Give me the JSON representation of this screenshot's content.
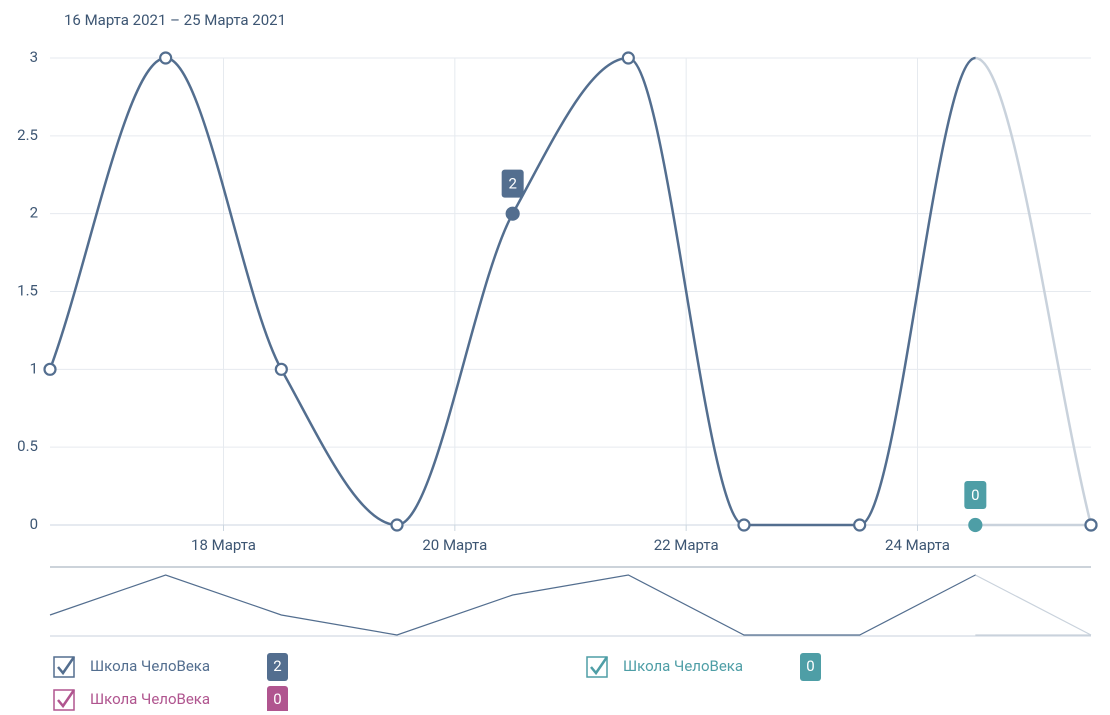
{
  "chart_data": {
    "type": "spline",
    "subtitle": "16 Марта 2021 – 25 Марта 2021",
    "x": [
      "2021-03-16",
      "2021-03-17",
      "2021-03-18",
      "2021-03-19",
      "2021-03-20",
      "2021-03-21",
      "2021-03-22",
      "2021-03-23",
      "2021-03-24",
      "2021-03-25"
    ],
    "series": [
      {
        "name": "Школа ЧелоВека",
        "color": "#536e8f",
        "values": [
          1,
          3,
          1,
          0,
          2,
          3,
          0,
          0,
          3,
          0
        ],
        "badge": 2,
        "highlight": 4
      },
      {
        "name": "Школа ЧелоВека",
        "color": "#4e9ea6",
        "values": [
          null,
          null,
          null,
          null,
          null,
          null,
          null,
          null,
          0,
          0
        ],
        "badge": 0,
        "highlight": 8
      },
      {
        "name": "Школа ЧелоВека",
        "color": "#b0558f",
        "values": [
          null,
          null,
          null,
          null,
          null,
          null,
          null,
          null,
          null,
          null
        ],
        "badge": 0
      }
    ],
    "ylim": [
      0,
      3
    ],
    "yticks": [
      0,
      0.5,
      1,
      1.5,
      2,
      2.5,
      3
    ],
    "xticks": [
      {
        "value": "2021-03-18",
        "label": "18 Марта"
      },
      {
        "value": "2021-03-20",
        "label": "20 Марта"
      },
      {
        "value": "2021-03-22",
        "label": "22 Марта"
      },
      {
        "value": "2021-03-24",
        "label": "24 Марта"
      }
    ],
    "grid": true
  }
}
